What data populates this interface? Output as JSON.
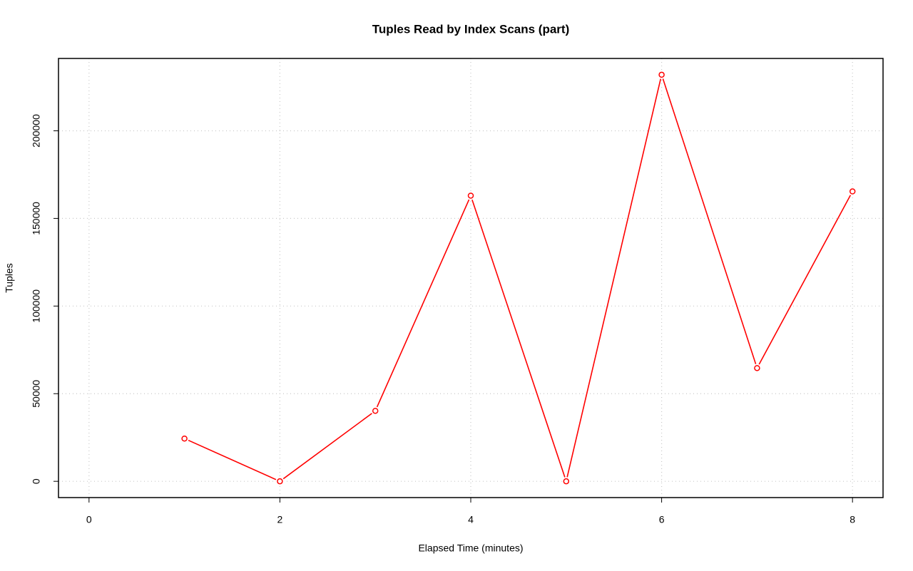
{
  "chart_data": {
    "type": "line",
    "title": "Tuples Read by Index Scans (part)",
    "xlabel": "Elapsed Time (minutes)",
    "ylabel": "Tuples",
    "x": [
      1,
      2,
      3,
      4,
      5,
      6,
      7,
      8
    ],
    "values": [
      24400,
      0,
      40200,
      163000,
      0,
      232000,
      64600,
      165400
    ],
    "color": "#ff0000",
    "xlim": [
      -0.32,
      8.32
    ],
    "ylim": [
      -9280,
      241280
    ],
    "xticks": [
      0,
      2,
      4,
      6,
      8
    ],
    "yticks": [
      0,
      50000,
      100000,
      150000,
      200000
    ],
    "grid": true
  }
}
